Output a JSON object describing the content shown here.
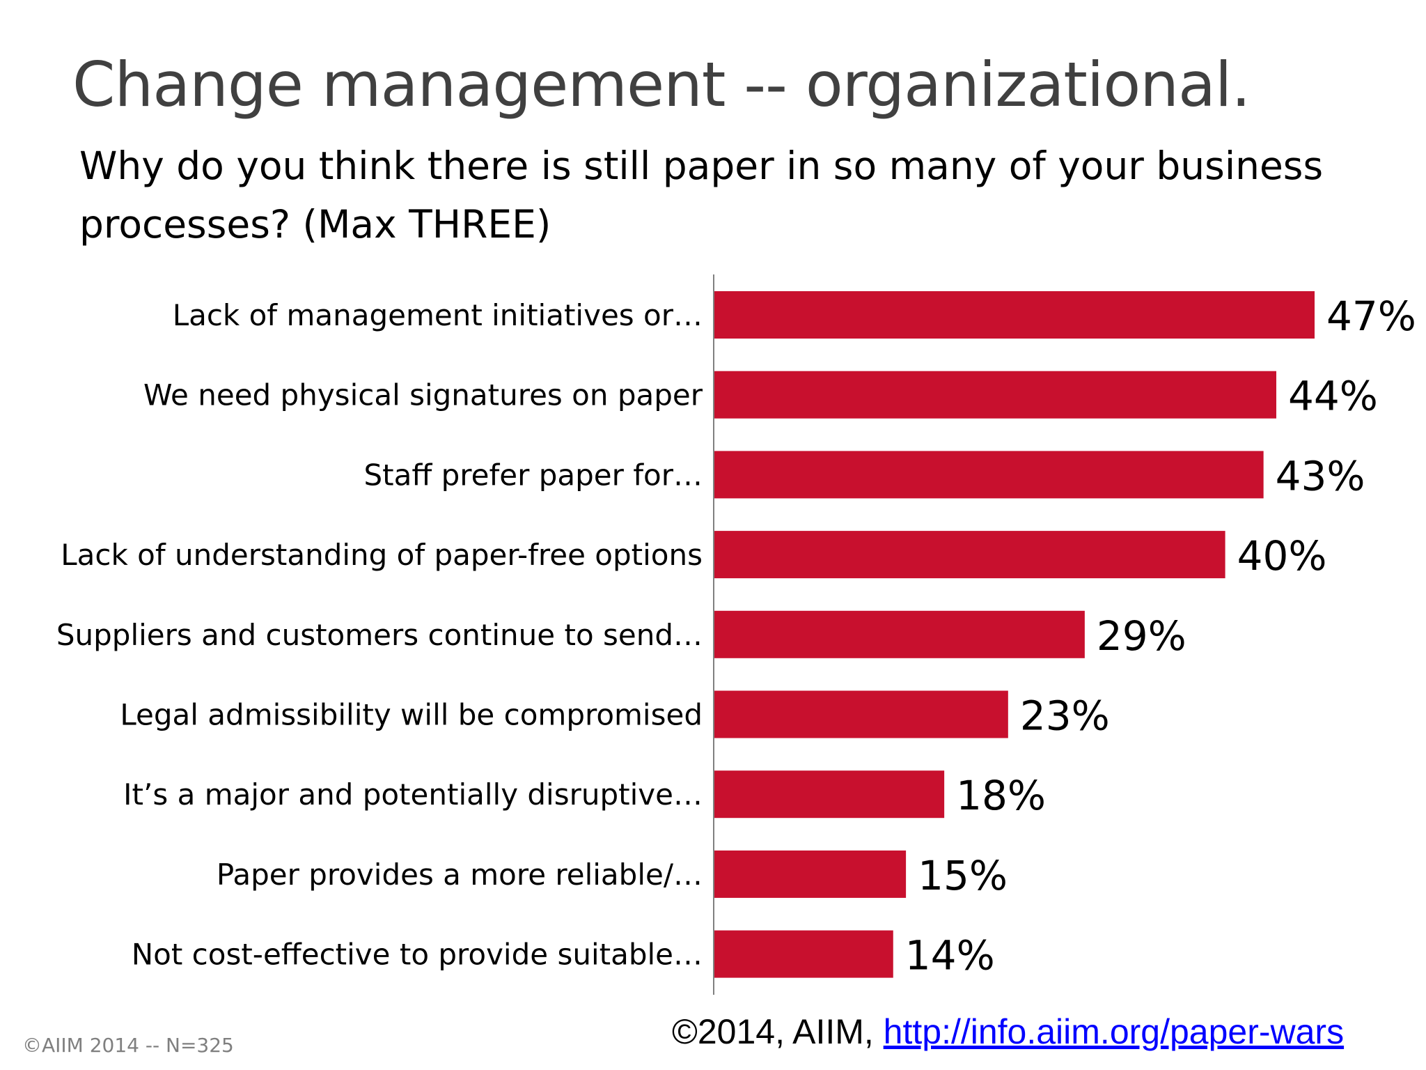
{
  "slide": {
    "title": "Change management -- organizational.",
    "subtitle": "Why do you think there is still paper in so many of your business processes? (Max THREE)"
  },
  "footer": {
    "note": "©AIIM 2014 -- N=325",
    "copyright_text": "©2014, AIIM, ",
    "link_text": "http://info.aiim.org/paper-wars"
  },
  "colors": {
    "bar": "#c8102e",
    "axis": "#808080",
    "label": "#000000"
  },
  "chart_data": {
    "type": "bar",
    "orientation": "horizontal",
    "categories": [
      "Lack of management initiatives or…",
      "We need physical signatures on paper",
      "Staff prefer paper for…",
      "Lack of understanding of paper-free options",
      "Suppliers and customers continue to send…",
      "Legal admissibility will be compromised",
      "It’s a major and potentially disruptive…",
      "Paper provides a more reliable/…",
      "Not cost-effective to provide suitable…"
    ],
    "values": [
      47,
      44,
      43,
      40,
      29,
      23,
      18,
      15,
      14
    ],
    "value_labels": [
      "47%",
      "44%",
      "43%",
      "40%",
      "29%",
      "23%",
      "18%",
      "15%",
      "14%"
    ],
    "xlim": [
      0,
      47
    ],
    "grid": false,
    "legend": "none"
  }
}
